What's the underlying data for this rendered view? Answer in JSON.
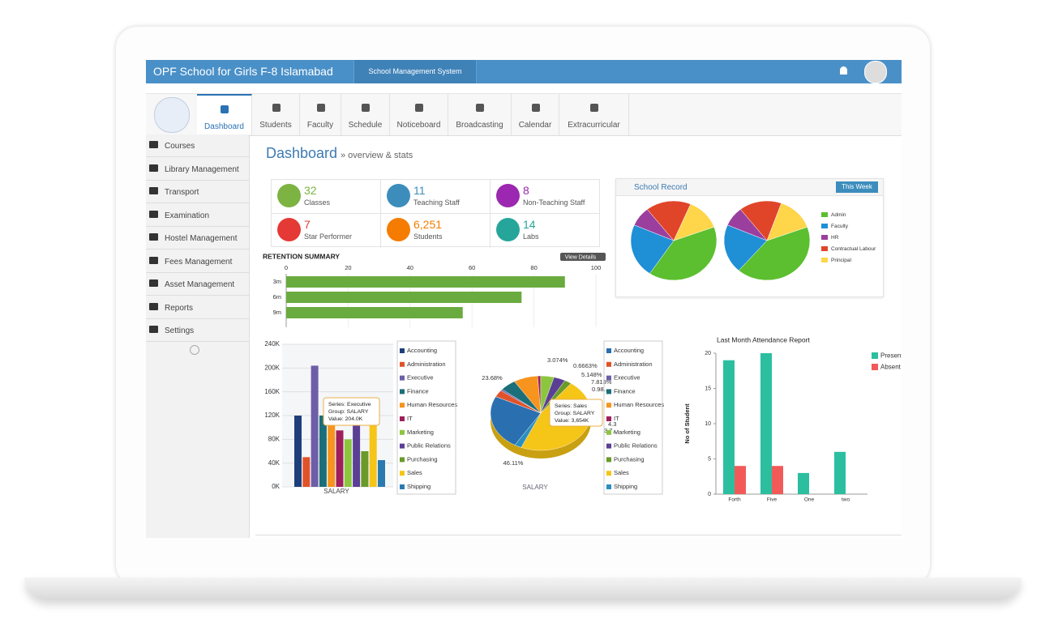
{
  "header": {
    "school": "OPF School for Girls F-8 Islamabad",
    "system": "School Management System"
  },
  "nav": [
    "Dashboard",
    "Students",
    "Faculty",
    "Schedule",
    "Noticeboard",
    "Broadcasting",
    "Calendar",
    "Extracurricular"
  ],
  "sidebar": [
    "Courses",
    "Library Management",
    "Transport",
    "Examination",
    "Hostel Management",
    "Fees Management",
    "Asset Management",
    "Reports",
    "Settings"
  ],
  "page": {
    "title": "Dashboard",
    "subtitle": "» overview & stats"
  },
  "stats": [
    {
      "value": 32,
      "label": "Classes",
      "color": "#7cb342"
    },
    {
      "value": 11,
      "label": "Teaching Staff",
      "color": "#3c8dbc"
    },
    {
      "value": 8,
      "label": "Non-Teaching Staff",
      "color": "#9c27b0"
    },
    {
      "value": 7,
      "label": "Star Performer",
      "color": "#e53935"
    },
    {
      "value": "6,251",
      "label": "Students",
      "color": "#f57c00"
    },
    {
      "value": 14,
      "label": "Labs",
      "color": "#26a69a"
    }
  ],
  "retention": {
    "type": "bar",
    "title": "RETENTION SUMMARY",
    "button": "View Details",
    "categories": [
      "3m",
      "6m",
      "9m"
    ],
    "values": [
      90,
      76,
      57
    ],
    "color": "#6aab3f",
    "xlim": [
      0,
      100
    ],
    "xticks": [
      0,
      20,
      40,
      60,
      80,
      100
    ]
  },
  "school_record": {
    "type": "pie",
    "title": "School Record",
    "button": "This Week",
    "categories": [
      "Admin",
      "Faculty",
      "HR",
      "Contractual Labour",
      "Principal"
    ],
    "colors": [
      "#5bbf2f",
      "#1f8fd6",
      "#9b3f9f",
      "#e0452a",
      "#ffd54a"
    ],
    "pies": [
      [
        40,
        22,
        8,
        17,
        13
      ],
      [
        42,
        20,
        8,
        16,
        14
      ]
    ]
  },
  "salary_bar": {
    "type": "bar",
    "category": "SALARY",
    "series": [
      {
        "name": "Accounting",
        "color": "#1f3f7a",
        "values": [
          120000
        ]
      },
      {
        "name": "Administration",
        "color": "#e0532a",
        "values": [
          50000
        ]
      },
      {
        "name": "Executive",
        "color": "#6e5ea8",
        "values": [
          204000
        ]
      },
      {
        "name": "Finance",
        "color": "#1a6f7a",
        "values": [
          120000
        ]
      },
      {
        "name": "Human Resources",
        "color": "#f7941d",
        "values": [
          130000
        ]
      },
      {
        "name": "IT",
        "color": "#9e1f5a",
        "values": [
          95000
        ]
      },
      {
        "name": "Marketing",
        "color": "#8cc63f",
        "values": [
          80000
        ]
      },
      {
        "name": "Public Relations",
        "color": "#5b3f95",
        "values": [
          115000
        ]
      },
      {
        "name": "Purchasing",
        "color": "#6a9a2a",
        "values": [
          60000
        ]
      },
      {
        "name": "Sales",
        "color": "#f5c518",
        "values": [
          135000
        ]
      },
      {
        "name": "Shipping",
        "color": "#2a7ab0",
        "values": [
          45000
        ]
      }
    ],
    "ylim": [
      0,
      240000
    ],
    "yticks": [
      {
        "value": 0,
        "label": "0K"
      },
      {
        "value": 40000,
        "label": "40K"
      },
      {
        "value": 80000,
        "label": "80K"
      },
      {
        "value": 120000,
        "label": "120K"
      },
      {
        "value": 160000,
        "label": "160K"
      },
      {
        "value": 200000,
        "label": "200K"
      },
      {
        "value": 240000,
        "label": "240K"
      }
    ],
    "tooltip": [
      "Series: Executive",
      "Group: SALARY",
      "Value: 204.0K"
    ]
  },
  "salary_pie": {
    "type": "pie",
    "category": "SALARY",
    "categories": [
      "Accounting",
      "Administration",
      "Executive",
      "Finance",
      "Human Resources",
      "IT",
      "Marketing",
      "Public Relations",
      "Purchasing",
      "Sales",
      "Shipping"
    ],
    "colors": [
      "#2a6fb0",
      "#e0532a",
      "#6e5ea8",
      "#1a6f7a",
      "#f7941d",
      "#9e1f5a",
      "#8cc63f",
      "#5b3f95",
      "#6a9a2a",
      "#f5c518",
      "#2a8fc0"
    ],
    "values": [
      23.68,
      3.074,
      0.6663,
      5.148,
      7.813,
      0.98,
      4.3,
      3.7,
      2.3,
      46.11,
      2.23
    ],
    "value_labels": [
      "23.68%",
      "3.074%",
      "0.6663%",
      "5.148%",
      "7.813%",
      "0.98...",
      "4.3",
      "3.7...",
      null,
      "46.11%",
      null
    ],
    "tooltip": [
      "Series: Sales",
      "Group: SALARY",
      "Value: 3,654K"
    ]
  },
  "attendance": {
    "type": "bar",
    "title": "Last Month Attendance Report",
    "ylabel": "No of Student",
    "categories": [
      "Forth",
      "Five",
      "One",
      "two"
    ],
    "series": [
      {
        "name": "Present",
        "color": "#2bbfa0",
        "values": [
          19,
          20,
          3,
          6
        ]
      },
      {
        "name": "Absent",
        "color": "#f25a5a",
        "values": [
          4,
          4,
          0,
          0
        ]
      }
    ],
    "ylim": [
      0,
      20
    ],
    "yticks": [
      0,
      5,
      10,
      15,
      20
    ]
  }
}
